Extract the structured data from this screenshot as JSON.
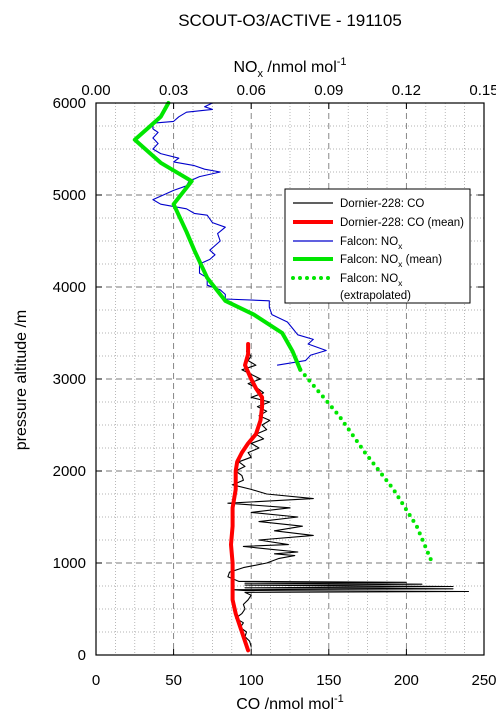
{
  "chart_data": {
    "type": "line",
    "title": "SCOUT-O3/ACTIVE - 191105",
    "top_axis": {
      "label_main": "NO",
      "label_sub": "x",
      "label_unit": " /nmol mol",
      "label_sup": "-1",
      "range": [
        0.0,
        0.15
      ],
      "ticks": [
        "0.00",
        "0.03",
        "0.06",
        "0.09",
        "0.12",
        "0.15"
      ]
    },
    "bottom_axis": {
      "label_main": "CO /nmol mol",
      "label_sup": "-1",
      "range": [
        0,
        250
      ],
      "ticks": [
        "0",
        "50",
        "100",
        "150",
        "200",
        "250"
      ]
    },
    "y_axis": {
      "label": "pressure altitude /m",
      "range": [
        0,
        6000
      ],
      "ticks": [
        "0",
        "1000",
        "2000",
        "3000",
        "4000",
        "5000",
        "6000"
      ]
    },
    "grid": true,
    "legend_position": "top-right",
    "legend": [
      {
        "label": "Dornier-228: CO",
        "sub": "",
        "suffix": "",
        "line2": ""
      },
      {
        "label": "Dornier-228: CO (mean)",
        "sub": "",
        "suffix": "",
        "line2": ""
      },
      {
        "label": "Falcon: NO",
        "sub": "x",
        "suffix": "",
        "line2": ""
      },
      {
        "label": "Falcon: NO",
        "sub": "x",
        "suffix": " (mean)",
        "line2": ""
      },
      {
        "label": "Falcon: NO",
        "sub": "x",
        "suffix": "",
        "line2": "(extrapolated)"
      }
    ],
    "series": [
      {
        "name": "Dornier-228: CO",
        "axis": "bottom",
        "color": "#000000",
        "values": [
          [
            100,
            90
          ],
          [
            99,
            150
          ],
          [
            96,
            200
          ],
          [
            97,
            250
          ],
          [
            93,
            300
          ],
          [
            95,
            350
          ],
          [
            90,
            400
          ],
          [
            94,
            450
          ],
          [
            96,
            500
          ],
          [
            95,
            550
          ],
          [
            98,
            600
          ],
          [
            100,
            650
          ],
          [
            96,
            680
          ],
          [
            240,
            690
          ],
          [
            96,
            700
          ],
          [
            88,
            710
          ],
          [
            230,
            720
          ],
          [
            96,
            730
          ],
          [
            230,
            745
          ],
          [
            96,
            760
          ],
          [
            210,
            770
          ],
          [
            96,
            780
          ],
          [
            200,
            790
          ],
          [
            92,
            800
          ],
          [
            85,
            850
          ],
          [
            86,
            900
          ],
          [
            95,
            950
          ],
          [
            110,
            1000
          ],
          [
            118,
            1050
          ],
          [
            128,
            1080
          ],
          [
            115,
            1100
          ],
          [
            130,
            1120
          ],
          [
            112,
            1150
          ],
          [
            95,
            1180
          ],
          [
            124,
            1200
          ],
          [
            105,
            1250
          ],
          [
            140,
            1300
          ],
          [
            115,
            1350
          ],
          [
            133,
            1400
          ],
          [
            105,
            1450
          ],
          [
            130,
            1500
          ],
          [
            100,
            1550
          ],
          [
            125,
            1600
          ],
          [
            85,
            1650
          ],
          [
            140,
            1700
          ],
          [
            110,
            1750
          ],
          [
            100,
            1800
          ],
          [
            88,
            1850
          ],
          [
            95,
            1900
          ],
          [
            94,
            1950
          ],
          [
            90,
            2000
          ],
          [
            96,
            2050
          ],
          [
            92,
            2100
          ],
          [
            100,
            2150
          ],
          [
            98,
            2200
          ],
          [
            105,
            2250
          ],
          [
            100,
            2300
          ],
          [
            108,
            2350
          ],
          [
            103,
            2400
          ],
          [
            110,
            2450
          ],
          [
            107,
            2500
          ],
          [
            112,
            2550
          ],
          [
            105,
            2600
          ],
          [
            110,
            2650
          ],
          [
            104,
            2700
          ],
          [
            112,
            2750
          ],
          [
            100,
            2800
          ],
          [
            108,
            2850
          ],
          [
            104,
            2900
          ],
          [
            98,
            2950
          ],
          [
            106,
            3000
          ],
          [
            100,
            3050
          ],
          [
            94,
            3100
          ],
          [
            103,
            3150
          ],
          [
            98,
            3200
          ],
          [
            100,
            3250
          ],
          [
            97,
            3300
          ],
          [
            98,
            3350
          ]
        ]
      },
      {
        "name": "Dornier-228: CO (mean)",
        "axis": "bottom",
        "color": "#ff0000",
        "values": [
          [
            98,
            50
          ],
          [
            94,
            250
          ],
          [
            90,
            450
          ],
          [
            88,
            600
          ],
          [
            88,
            800
          ],
          [
            88,
            1000
          ],
          [
            87,
            1200
          ],
          [
            88,
            1400
          ],
          [
            88,
            1600
          ],
          [
            90,
            1800
          ],
          [
            90,
            2000
          ],
          [
            91,
            2100
          ],
          [
            94,
            2200
          ],
          [
            98,
            2300
          ],
          [
            103,
            2400
          ],
          [
            106,
            2550
          ],
          [
            107,
            2700
          ],
          [
            107,
            2800
          ],
          [
            103,
            2900
          ],
          [
            100,
            3000
          ],
          [
            96,
            3150
          ],
          [
            98,
            3270
          ],
          [
            98,
            3380
          ]
        ]
      },
      {
        "name": "Falcon: NOx",
        "axis": "top",
        "color": "#0000cc",
        "values": [
          [
            0.07,
            3150
          ],
          [
            0.081,
            3200
          ],
          [
            0.083,
            3260
          ],
          [
            0.089,
            3310
          ],
          [
            0.082,
            3380
          ],
          [
            0.084,
            3430
          ],
          [
            0.078,
            3480
          ],
          [
            0.076,
            3550
          ],
          [
            0.074,
            3620
          ],
          [
            0.068,
            3700
          ],
          [
            0.067,
            3780
          ],
          [
            0.067,
            3850
          ],
          [
            0.05,
            3870
          ],
          [
            0.05,
            3920
          ],
          [
            0.048,
            3970
          ],
          [
            0.043,
            4020
          ],
          [
            0.043,
            4100
          ],
          [
            0.04,
            4150
          ],
          [
            0.04,
            4250
          ],
          [
            0.044,
            4300
          ],
          [
            0.046,
            4350
          ],
          [
            0.044,
            4400
          ],
          [
            0.046,
            4450
          ],
          [
            0.048,
            4500
          ],
          [
            0.047,
            4580
          ],
          [
            0.05,
            4650
          ],
          [
            0.045,
            4700
          ],
          [
            0.043,
            4780
          ],
          [
            0.038,
            4800
          ],
          [
            0.035,
            4850
          ],
          [
            0.025,
            4900
          ],
          [
            0.022,
            4950
          ],
          [
            0.026,
            5000
          ],
          [
            0.03,
            5050
          ],
          [
            0.035,
            5100
          ],
          [
            0.036,
            5150
          ],
          [
            0.04,
            5200
          ],
          [
            0.048,
            5250
          ],
          [
            0.042,
            5280
          ],
          [
            0.038,
            5320
          ],
          [
            0.03,
            5360
          ],
          [
            0.032,
            5400
          ],
          [
            0.025,
            5450
          ],
          [
            0.022,
            5500
          ],
          [
            0.024,
            5560
          ],
          [
            0.022,
            5620
          ],
          [
            0.024,
            5680
          ],
          [
            0.022,
            5720
          ],
          [
            0.022,
            5780
          ],
          [
            0.03,
            5800
          ],
          [
            0.032,
            5850
          ],
          [
            0.035,
            5900
          ],
          [
            0.045,
            5930
          ],
          [
            0.042,
            5960
          ],
          [
            0.045,
            6000
          ]
        ]
      },
      {
        "name": "Falcon: NOx (mean)",
        "axis": "top",
        "color": "#00e600",
        "values": [
          [
            0.079,
            3100
          ],
          [
            0.076,
            3300
          ],
          [
            0.072,
            3500
          ],
          [
            0.061,
            3700
          ],
          [
            0.05,
            3850
          ],
          [
            0.043,
            4100
          ],
          [
            0.038,
            4400
          ],
          [
            0.035,
            4600
          ],
          [
            0.03,
            4900
          ],
          [
            0.037,
            5150
          ],
          [
            0.025,
            5350
          ],
          [
            0.015,
            5600
          ],
          [
            0.025,
            5850
          ],
          [
            0.028,
            6000
          ]
        ]
      },
      {
        "name": "Falcon: NOx (extrapolated)",
        "axis": "top",
        "color": "#00e600",
        "dotted": true,
        "values": [
          [
            0.079,
            3100
          ],
          [
            0.094,
            2600
          ],
          [
            0.104,
            2200
          ],
          [
            0.115,
            1800
          ],
          [
            0.124,
            1400
          ],
          [
            0.13,
            1000
          ]
        ]
      }
    ]
  }
}
